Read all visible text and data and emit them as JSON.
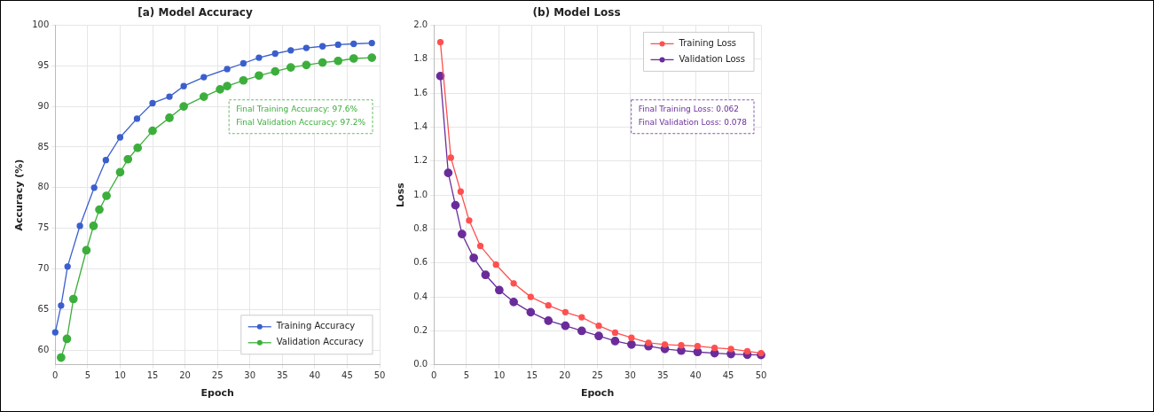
{
  "chart_data": [
    {
      "type": "line",
      "title": "[a) Model Accuracy",
      "xlabel": "Epoch",
      "ylabel": "Accuracy (%)",
      "xlim": [
        0,
        50
      ],
      "xticks": [
        0,
        5,
        10,
        15,
        20,
        25,
        30,
        35,
        40,
        45,
        50
      ],
      "ylim": [
        58.2,
        100
      ],
      "yticks": [
        60,
        65,
        70,
        75,
        80,
        85,
        90,
        95,
        100
      ],
      "grid": true,
      "legend": "bottom right",
      "marker": "circle",
      "line_style": "solid",
      "annotations": [
        "Final Training Accuracy: 97.6%",
        "Final Validation Accuracy: 97.2%"
      ],
      "series": [
        {
          "name": "Training Accuracy",
          "color": "#3a5fcd",
          "x": [
            0,
            0.9,
            1.9,
            3.8,
            6,
            7.8,
            10,
            12.6,
            15,
            17.6,
            19.8,
            22.9,
            26.5,
            29,
            31.4,
            33.9,
            36.3,
            38.7,
            41.2,
            43.6,
            46,
            48.8
          ],
          "values": [
            62.2,
            65.5,
            70.3,
            75.3,
            80,
            83.4,
            86.2,
            88.5,
            90.4,
            91.2,
            92.5,
            93.6,
            94.6,
            95.3,
            96,
            96.5,
            96.9,
            97.2,
            97.4,
            97.6,
            97.7,
            97.8
          ]
        },
        {
          "name": "Validation Accuracy",
          "color": "#3cae3c",
          "x": [
            0.9,
            1.8,
            2.8,
            4.8,
            5.9,
            6.8,
            7.9,
            10,
            11.2,
            12.7,
            15,
            17.6,
            19.8,
            22.9,
            25.4,
            26.5,
            29,
            31.4,
            33.9,
            36.3,
            38.7,
            41.2,
            43.6,
            46,
            48.8
          ],
          "values": [
            59.1,
            61.4,
            66.3,
            72.3,
            75.3,
            77.3,
            79,
            81.9,
            83.5,
            84.9,
            87,
            88.6,
            90,
            91.2,
            92.1,
            92.5,
            93.2,
            93.8,
            94.3,
            94.8,
            95.1,
            95.4,
            95.6,
            95.9,
            96
          ]
        }
      ]
    },
    {
      "type": "line",
      "title": "(b) Model Loss",
      "xlabel": "Epoch",
      "ylabel": "Loss",
      "xlim": [
        0,
        50
      ],
      "xticks": [
        0,
        5,
        10,
        15,
        20,
        25,
        30,
        35,
        40,
        45,
        50
      ],
      "ylim": [
        0,
        2
      ],
      "yticks": [
        {
          "value": 0,
          "label": "0.0"
        },
        0.2,
        0.4,
        0.6,
        0.8,
        {
          "value": 1,
          "label": "1.0"
        },
        1.2,
        1.4,
        1.6,
        1.8,
        {
          "value": 2,
          "label": "2.0"
        }
      ],
      "grid": true,
      "legend": "top right",
      "marker": "circle",
      "line_style": "solid",
      "annotations": [
        "Final Training Loss: 0.062",
        "Final Validation Loss: 0.078"
      ],
      "series": [
        {
          "name": "Training Loss",
          "color": "#ff5050",
          "x": [
            1,
            2.6,
            4.1,
            5.4,
            7.1,
            9.5,
            12.2,
            14.8,
            17.5,
            20.1,
            22.6,
            25.2,
            27.7,
            30.2,
            32.8,
            35.3,
            37.8,
            40.3,
            42.9,
            45.4,
            47.9,
            50
          ],
          "values": [
            1.9,
            1.22,
            1.02,
            0.85,
            0.7,
            0.59,
            0.48,
            0.4,
            0.35,
            0.31,
            0.28,
            0.23,
            0.19,
            0.16,
            0.13,
            0.12,
            0.115,
            0.11,
            0.1,
            0.093,
            0.08,
            0.069
          ]
        },
        {
          "name": "Validation Loss",
          "color": "#6a2c9a",
          "x": [
            1,
            2.2,
            3.3,
            4.3,
            6.1,
            7.9,
            10,
            12.2,
            14.8,
            17.5,
            20.1,
            22.6,
            25.2,
            27.7,
            30.2,
            32.8,
            35.3,
            37.8,
            40.3,
            42.9,
            45.4,
            47.9,
            50
          ],
          "values": [
            1.7,
            1.13,
            0.94,
            0.77,
            0.63,
            0.53,
            0.44,
            0.37,
            0.31,
            0.26,
            0.23,
            0.2,
            0.17,
            0.14,
            0.12,
            0.11,
            0.094,
            0.084,
            0.076,
            0.069,
            0.064,
            0.06,
            0.058
          ]
        }
      ]
    }
  ]
}
